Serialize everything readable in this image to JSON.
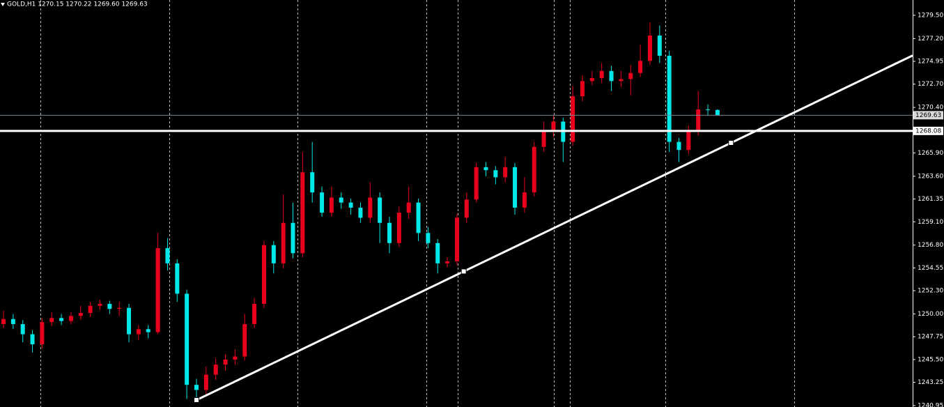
{
  "chart_data": {
    "type": "candlestick",
    "title": "GOLD,H1  1270.15 1270.22 1269.60 1269.63",
    "up_color": "#e8001c",
    "down_color": "#00e8e8",
    "open": [
      1249.0,
      1249.5,
      1249.0,
      1248.0,
      1247.0,
      1249.2,
      1249.6,
      1249.3,
      1249.8,
      1250.1,
      1250.8,
      1251.0,
      1250.5,
      1250.6,
      1248.0,
      1248.5,
      1248.2,
      1256.5,
      1255.0,
      1252.0,
      1243.0,
      1242.5,
      1244.0,
      1245.0,
      1245.5,
      1245.8,
      1249.0,
      1251.0,
      1256.8,
      1255.0,
      1259.0,
      1256.0,
      1264.0,
      1262.0,
      1260.0,
      1261.5,
      1261.0,
      1260.5,
      1259.5,
      1261.5,
      1259.0,
      1257.0,
      1260.0,
      1261.0,
      1258.0,
      1257.0,
      1255.0,
      1255.2,
      1259.5,
      1261.3,
      1264.5,
      1264.2,
      1263.5,
      1264.5,
      1260.5,
      1262.0,
      1266.5,
      1268.0,
      1269.0,
      1267.0,
      1271.5,
      1273.0,
      1273.3,
      1274.0,
      1273.0,
      1273.2,
      1273.8,
      1275.0,
      1277.5,
      1275.5,
      1267.0,
      1266.2,
      1268.0,
      1270.2,
      1270.15
    ],
    "high": [
      1250.3,
      1250.0,
      1249.4,
      1248.4,
      1249.6,
      1250.2,
      1250.0,
      1250.2,
      1250.8,
      1251.2,
      1251.4,
      1251.3,
      1251.2,
      1251.0,
      1248.9,
      1248.9,
      1258.0,
      1257.5,
      1255.4,
      1252.4,
      1243.6,
      1244.8,
      1245.6,
      1246.0,
      1246.5,
      1250.0,
      1251.6,
      1257.2,
      1257.2,
      1261.8,
      1261.0,
      1266.0,
      1267.0,
      1262.6,
      1262.6,
      1262.0,
      1261.4,
      1261.0,
      1263.0,
      1262.0,
      1259.6,
      1260.6,
      1262.6,
      1261.4,
      1258.6,
      1257.4,
      1255.6,
      1259.9,
      1262.0,
      1264.9,
      1265.0,
      1264.6,
      1265.5,
      1264.9,
      1263.5,
      1267.0,
      1269.0,
      1269.6,
      1269.4,
      1272.5,
      1273.6,
      1274.0,
      1274.8,
      1274.5,
      1274.0,
      1274.6,
      1276.6,
      1278.8,
      1278.5,
      1276.0,
      1267.4,
      1268.6,
      1272.0,
      1270.7,
      1270.22
    ],
    "low": [
      1248.6,
      1248.5,
      1247.2,
      1246.2,
      1246.6,
      1248.8,
      1248.9,
      1249.0,
      1249.4,
      1249.7,
      1250.4,
      1250.0,
      1249.8,
      1247.2,
      1247.4,
      1247.6,
      1248.0,
      1254.3,
      1251.2,
      1241.6,
      1241.5,
      1242.0,
      1243.5,
      1244.4,
      1245.0,
      1245.4,
      1248.6,
      1250.6,
      1254.0,
      1254.5,
      1255.5,
      1255.6,
      1261.0,
      1259.6,
      1259.6,
      1260.4,
      1259.8,
      1259.0,
      1259.0,
      1257.0,
      1256.0,
      1256.6,
      1259.4,
      1257.2,
      1256.5,
      1254.0,
      1254.6,
      1254.8,
      1259.0,
      1261.0,
      1263.6,
      1262.8,
      1263.0,
      1259.8,
      1260.0,
      1261.6,
      1266.0,
      1267.5,
      1265.0,
      1266.6,
      1271.0,
      1272.6,
      1272.8,
      1272.0,
      1272.4,
      1271.6,
      1273.4,
      1274.6,
      1274.8,
      1266.0,
      1265.0,
      1265.8,
      1267.6,
      1269.6,
      1269.6
    ],
    "close": [
      1249.5,
      1249.0,
      1248.0,
      1247.0,
      1249.2,
      1249.6,
      1249.3,
      1249.8,
      1250.1,
      1250.8,
      1251.0,
      1250.5,
      1250.6,
      1248.0,
      1248.5,
      1248.2,
      1256.5,
      1255.0,
      1252.0,
      1243.0,
      1242.5,
      1244.0,
      1245.0,
      1245.5,
      1245.8,
      1249.0,
      1251.0,
      1256.8,
      1255.0,
      1259.0,
      1256.0,
      1264.0,
      1262.0,
      1260.0,
      1261.5,
      1261.0,
      1260.5,
      1259.5,
      1261.5,
      1259.0,
      1257.0,
      1260.0,
      1261.0,
      1258.0,
      1257.0,
      1255.0,
      1255.2,
      1259.5,
      1261.3,
      1264.5,
      1264.2,
      1263.5,
      1264.5,
      1260.5,
      1262.0,
      1266.5,
      1268.0,
      1269.0,
      1267.0,
      1271.5,
      1273.0,
      1273.3,
      1274.0,
      1273.0,
      1273.2,
      1273.8,
      1275.0,
      1277.5,
      1275.5,
      1267.0,
      1266.2,
      1268.0,
      1270.2,
      1270.15,
      1269.63
    ],
    "ylim": [
      1240.81,
      1281.01
    ],
    "yticks": [
      {
        "value": 1279.5,
        "label": "1279.50"
      },
      {
        "value": 1277.2,
        "label": "1277.20"
      },
      1274.95,
      {
        "value": 1272.7,
        "label": "1272.70"
      },
      {
        "value": 1270.4,
        "label": "1270.40"
      },
      {
        "value": 1265.9,
        "label": "1265.90"
      },
      {
        "value": 1263.6,
        "label": "1263.60"
      },
      1261.35,
      {
        "value": 1259.1,
        "label": "1259.10"
      },
      {
        "value": 1256.8,
        "label": "1256.80"
      },
      1254.55,
      {
        "value": 1252.3,
        "label": "1252.30"
      },
      {
        "value": 1250,
        "label": "1250.00"
      },
      1247.75,
      {
        "value": 1245.5,
        "label": "1245.50"
      },
      1243.25,
      1240.95
    ],
    "current_price": 1269.63,
    "horizontal_line": 1268.08,
    "trendline": {
      "x": [
        20,
        47.7,
        75.4
      ],
      "y": [
        1241.5,
        1254.2,
        1266.9
      ]
    }
  }
}
